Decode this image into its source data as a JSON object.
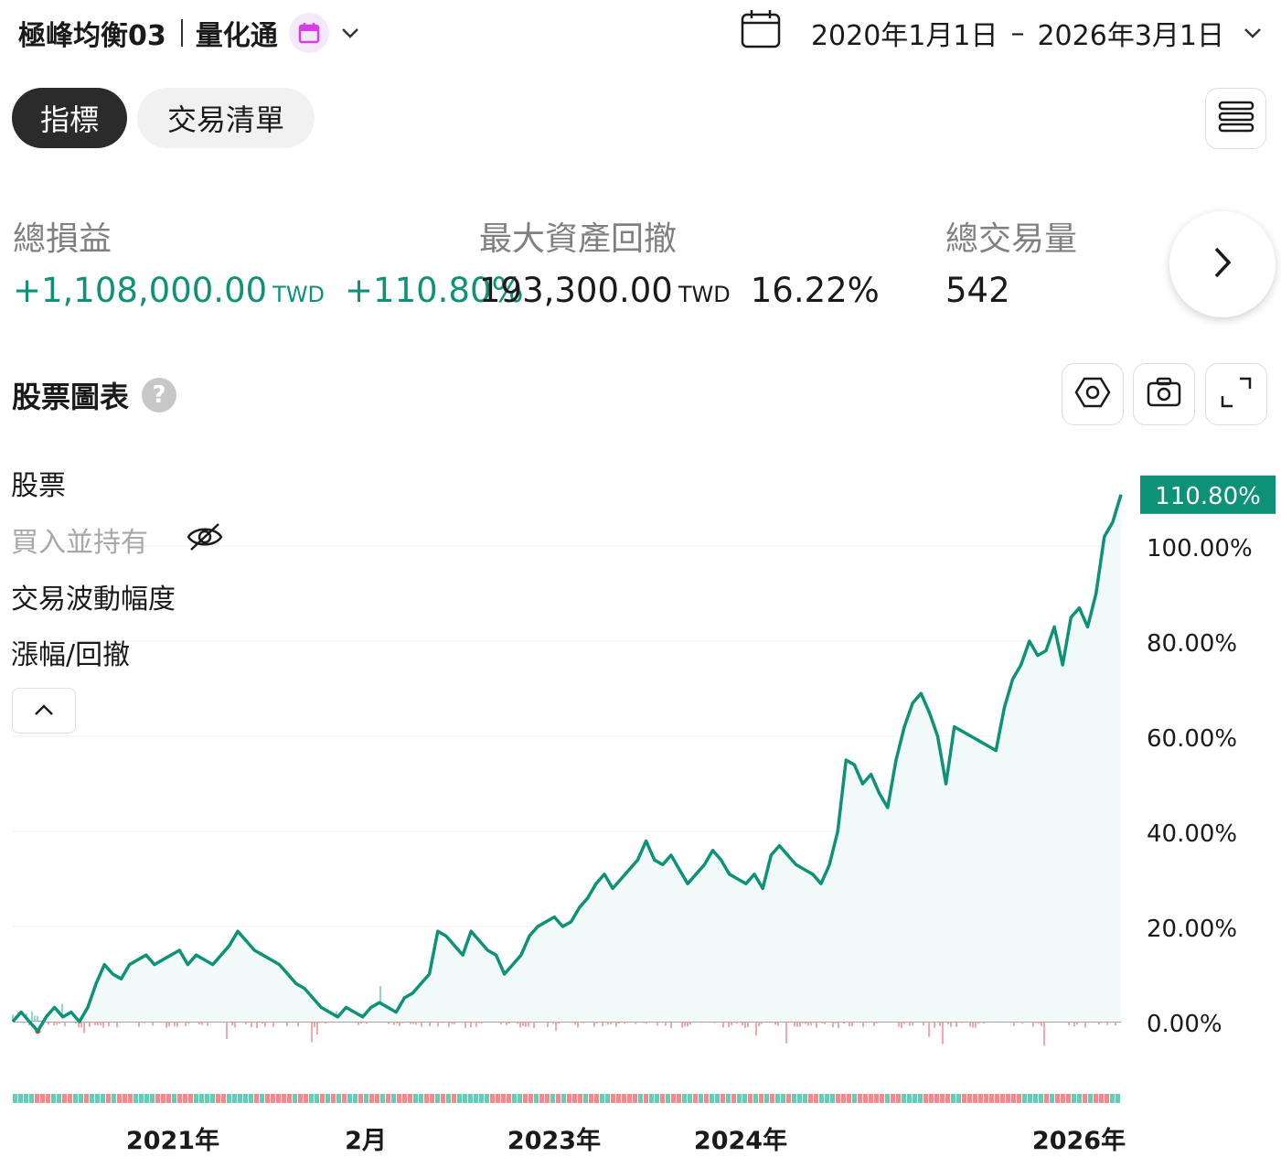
{
  "header": {
    "strategy_name": "極峰均衡03",
    "platform": "量化通",
    "date_start": "2020年1月1日",
    "date_sep": "–",
    "date_end": "2026年3月1日"
  },
  "tabs": [
    {
      "label": "指標",
      "active": true
    },
    {
      "label": "交易清單",
      "active": false
    }
  ],
  "metrics": {
    "total_pnl": {
      "label": "總損益",
      "value": "+1,108,000.00",
      "unit": "TWD",
      "percent": "+110.80%"
    },
    "max_drawdown": {
      "label": "最大資產回撤",
      "value": "193,300.00",
      "unit": "TWD",
      "percent": "16.22%"
    },
    "total_trades": {
      "label": "總交易量",
      "value": "542"
    }
  },
  "chart_section": {
    "title": "股票圖表",
    "help": "?",
    "legend": [
      {
        "label": "股票",
        "visible": true
      },
      {
        "label": "買入並持有",
        "visible": false
      },
      {
        "label": "交易波動幅度",
        "visible": true
      },
      {
        "label": "漲幅/回撤",
        "visible": true
      }
    ]
  },
  "colors": {
    "accent_green": "#0e9277",
    "fill_green": "#f1faf8",
    "bar_green": "#6cc9b6",
    "bar_red": "#ef8a8e",
    "neg_red": "#e53935"
  },
  "chart_data": {
    "type": "area",
    "ylabel": "",
    "ylim": [
      0,
      120
    ],
    "y_ticks": [
      "0.00%",
      "20.00%",
      "40.00%",
      "60.00%",
      "80.00%",
      "100.00%"
    ],
    "x_labels": [
      "2021年",
      "2月",
      "2023年",
      "2024年",
      "2026年"
    ],
    "last_value_label": "110.80%",
    "grid": true,
    "series": [
      {
        "values": [
          0,
          2,
          0,
          -2,
          1,
          3,
          1,
          2,
          0,
          3,
          8,
          12,
          10,
          9,
          12,
          13,
          14,
          12,
          13,
          14,
          15,
          12,
          14,
          13,
          12,
          14,
          16,
          19,
          17,
          15,
          14,
          13,
          12,
          10,
          8,
          7,
          5,
          3,
          2,
          1,
          3,
          2,
          1,
          3,
          4,
          3,
          2,
          5,
          6,
          8,
          10,
          19,
          18,
          16,
          14,
          19,
          17,
          15,
          14,
          10,
          12,
          14,
          18,
          20,
          21,
          22,
          20,
          21,
          24,
          26,
          29,
          31,
          28,
          30,
          32,
          34,
          38,
          34,
          33,
          35,
          32,
          29,
          31,
          33,
          36,
          34,
          31,
          30,
          29,
          31,
          28,
          35,
          37,
          35,
          33,
          32,
          31,
          29,
          33,
          40,
          55,
          54,
          50,
          52,
          48,
          45,
          55,
          62,
          67,
          69,
          65,
          60,
          50,
          62,
          61,
          60,
          59,
          58,
          57,
          66,
          72,
          75,
          80,
          77,
          78,
          83,
          75,
          85,
          87,
          83,
          90,
          102,
          105,
          110.8
        ]
      }
    ]
  }
}
